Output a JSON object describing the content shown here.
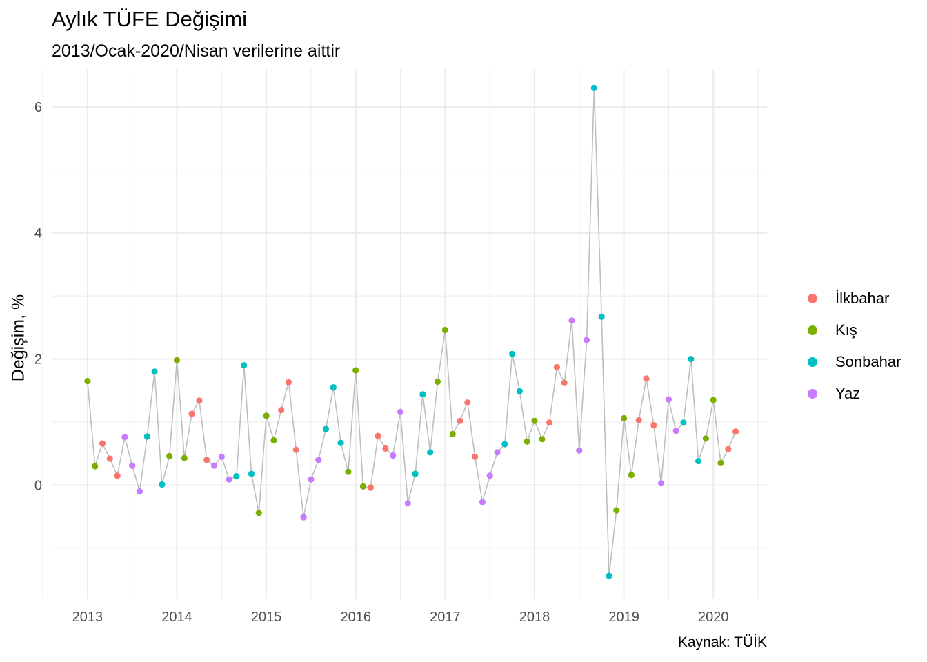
{
  "chart_data": {
    "type": "scatter",
    "title": "Aylık TÜFE Değişimi",
    "subtitle": "2013/Ocak-2020/Nisan verilerine aittir",
    "caption": "Kaynak: TÜİK",
    "xlabel": "",
    "ylabel": "Değişim, %",
    "x_ticks": [
      "2013",
      "2014",
      "2015",
      "2016",
      "2017",
      "2018",
      "2019",
      "2020"
    ],
    "y_ticks": [
      "0",
      "2",
      "4",
      "6"
    ],
    "xlim": [
      2012.6,
      2020.6
    ],
    "ylim": [
      -1.8,
      6.6
    ],
    "grid": true,
    "legend_position": "right",
    "line_color": "#bebebe",
    "series": [
      {
        "name": "İlkbahar",
        "color": "#F8766D"
      },
      {
        "name": "Kış",
        "color": "#7CAE00"
      },
      {
        "name": "Sonbahar",
        "color": "#00BFC4"
      },
      {
        "name": "Yaz",
        "color": "#C77CFF"
      }
    ],
    "points": [
      {
        "date": "2013-01",
        "value": 1.65,
        "season": "Kış"
      },
      {
        "date": "2013-02",
        "value": 0.3,
        "season": "Kış"
      },
      {
        "date": "2013-03",
        "value": 0.66,
        "season": "İlkbahar"
      },
      {
        "date": "2013-04",
        "value": 0.42,
        "season": "İlkbahar"
      },
      {
        "date": "2013-05",
        "value": 0.15,
        "season": "İlkbahar"
      },
      {
        "date": "2013-06",
        "value": 0.76,
        "season": "Yaz"
      },
      {
        "date": "2013-07",
        "value": 0.31,
        "season": "Yaz"
      },
      {
        "date": "2013-08",
        "value": -0.1,
        "season": "Yaz"
      },
      {
        "date": "2013-09",
        "value": 0.77,
        "season": "Sonbahar"
      },
      {
        "date": "2013-10",
        "value": 1.8,
        "season": "Sonbahar"
      },
      {
        "date": "2013-11",
        "value": 0.01,
        "season": "Sonbahar"
      },
      {
        "date": "2013-12",
        "value": 0.46,
        "season": "Kış"
      },
      {
        "date": "2014-01",
        "value": 1.98,
        "season": "Kış"
      },
      {
        "date": "2014-02",
        "value": 0.43,
        "season": "Kış"
      },
      {
        "date": "2014-03",
        "value": 1.13,
        "season": "İlkbahar"
      },
      {
        "date": "2014-04",
        "value": 1.34,
        "season": "İlkbahar"
      },
      {
        "date": "2014-05",
        "value": 0.4,
        "season": "İlkbahar"
      },
      {
        "date": "2014-06",
        "value": 0.31,
        "season": "Yaz"
      },
      {
        "date": "2014-07",
        "value": 0.45,
        "season": "Yaz"
      },
      {
        "date": "2014-08",
        "value": 0.09,
        "season": "Yaz"
      },
      {
        "date": "2014-09",
        "value": 0.14,
        "season": "Sonbahar"
      },
      {
        "date": "2014-10",
        "value": 1.9,
        "season": "Sonbahar"
      },
      {
        "date": "2014-11",
        "value": 0.18,
        "season": "Sonbahar"
      },
      {
        "date": "2014-12",
        "value": -0.44,
        "season": "Kış"
      },
      {
        "date": "2015-01",
        "value": 1.1,
        "season": "Kış"
      },
      {
        "date": "2015-02",
        "value": 0.71,
        "season": "Kış"
      },
      {
        "date": "2015-03",
        "value": 1.19,
        "season": "İlkbahar"
      },
      {
        "date": "2015-04",
        "value": 1.63,
        "season": "İlkbahar"
      },
      {
        "date": "2015-05",
        "value": 0.56,
        "season": "İlkbahar"
      },
      {
        "date": "2015-06",
        "value": -0.51,
        "season": "Yaz"
      },
      {
        "date": "2015-07",
        "value": 0.09,
        "season": "Yaz"
      },
      {
        "date": "2015-08",
        "value": 0.4,
        "season": "Yaz"
      },
      {
        "date": "2015-09",
        "value": 0.89,
        "season": "Sonbahar"
      },
      {
        "date": "2015-10",
        "value": 1.55,
        "season": "Sonbahar"
      },
      {
        "date": "2015-11",
        "value": 0.67,
        "season": "Sonbahar"
      },
      {
        "date": "2015-12",
        "value": 0.21,
        "season": "Kış"
      },
      {
        "date": "2016-01",
        "value": 1.82,
        "season": "Kış"
      },
      {
        "date": "2016-02",
        "value": -0.02,
        "season": "Kış"
      },
      {
        "date": "2016-03",
        "value": -0.04,
        "season": "İlkbahar"
      },
      {
        "date": "2016-04",
        "value": 0.78,
        "season": "İlkbahar"
      },
      {
        "date": "2016-05",
        "value": 0.58,
        "season": "İlkbahar"
      },
      {
        "date": "2016-06",
        "value": 0.47,
        "season": "Yaz"
      },
      {
        "date": "2016-07",
        "value": 1.16,
        "season": "Yaz"
      },
      {
        "date": "2016-08",
        "value": -0.29,
        "season": "Yaz"
      },
      {
        "date": "2016-09",
        "value": 0.18,
        "season": "Sonbahar"
      },
      {
        "date": "2016-10",
        "value": 1.44,
        "season": "Sonbahar"
      },
      {
        "date": "2016-11",
        "value": 0.52,
        "season": "Sonbahar"
      },
      {
        "date": "2016-12",
        "value": 1.64,
        "season": "Kış"
      },
      {
        "date": "2017-01",
        "value": 2.46,
        "season": "Kış"
      },
      {
        "date": "2017-02",
        "value": 0.81,
        "season": "Kış"
      },
      {
        "date": "2017-03",
        "value": 1.02,
        "season": "İlkbahar"
      },
      {
        "date": "2017-04",
        "value": 1.31,
        "season": "İlkbahar"
      },
      {
        "date": "2017-05",
        "value": 0.45,
        "season": "İlkbahar"
      },
      {
        "date": "2017-06",
        "value": -0.27,
        "season": "Yaz"
      },
      {
        "date": "2017-07",
        "value": 0.15,
        "season": "Yaz"
      },
      {
        "date": "2017-08",
        "value": 0.52,
        "season": "Yaz"
      },
      {
        "date": "2017-09",
        "value": 0.65,
        "season": "Sonbahar"
      },
      {
        "date": "2017-10",
        "value": 2.08,
        "season": "Sonbahar"
      },
      {
        "date": "2017-11",
        "value": 1.49,
        "season": "Sonbahar"
      },
      {
        "date": "2017-12",
        "value": 0.69,
        "season": "Kış"
      },
      {
        "date": "2018-01",
        "value": 1.02,
        "season": "Kış"
      },
      {
        "date": "2018-02",
        "value": 0.73,
        "season": "Kış"
      },
      {
        "date": "2018-03",
        "value": 0.99,
        "season": "İlkbahar"
      },
      {
        "date": "2018-04",
        "value": 1.87,
        "season": "İlkbahar"
      },
      {
        "date": "2018-05",
        "value": 1.62,
        "season": "İlkbahar"
      },
      {
        "date": "2018-06",
        "value": 2.61,
        "season": "Yaz"
      },
      {
        "date": "2018-07",
        "value": 0.55,
        "season": "Yaz"
      },
      {
        "date": "2018-08",
        "value": 2.3,
        "season": "Yaz"
      },
      {
        "date": "2018-09",
        "value": 6.3,
        "season": "Sonbahar"
      },
      {
        "date": "2018-10",
        "value": 2.67,
        "season": "Sonbahar"
      },
      {
        "date": "2018-11",
        "value": -1.44,
        "season": "Sonbahar"
      },
      {
        "date": "2018-12",
        "value": -0.4,
        "season": "Kış"
      },
      {
        "date": "2019-01",
        "value": 1.06,
        "season": "Kış"
      },
      {
        "date": "2019-02",
        "value": 0.16,
        "season": "Kış"
      },
      {
        "date": "2019-03",
        "value": 1.03,
        "season": "İlkbahar"
      },
      {
        "date": "2019-04",
        "value": 1.69,
        "season": "İlkbahar"
      },
      {
        "date": "2019-05",
        "value": 0.95,
        "season": "İlkbahar"
      },
      {
        "date": "2019-06",
        "value": 0.03,
        "season": "Yaz"
      },
      {
        "date": "2019-07",
        "value": 1.36,
        "season": "Yaz"
      },
      {
        "date": "2019-08",
        "value": 0.86,
        "season": "Yaz"
      },
      {
        "date": "2019-09",
        "value": 0.99,
        "season": "Sonbahar"
      },
      {
        "date": "2019-10",
        "value": 2.0,
        "season": "Sonbahar"
      },
      {
        "date": "2019-11",
        "value": 0.38,
        "season": "Sonbahar"
      },
      {
        "date": "2019-12",
        "value": 0.74,
        "season": "Kış"
      },
      {
        "date": "2020-01",
        "value": 1.35,
        "season": "Kış"
      },
      {
        "date": "2020-02",
        "value": 0.35,
        "season": "Kış"
      },
      {
        "date": "2020-03",
        "value": 0.57,
        "season": "İlkbahar"
      },
      {
        "date": "2020-04",
        "value": 0.85,
        "season": "İlkbahar"
      }
    ]
  }
}
